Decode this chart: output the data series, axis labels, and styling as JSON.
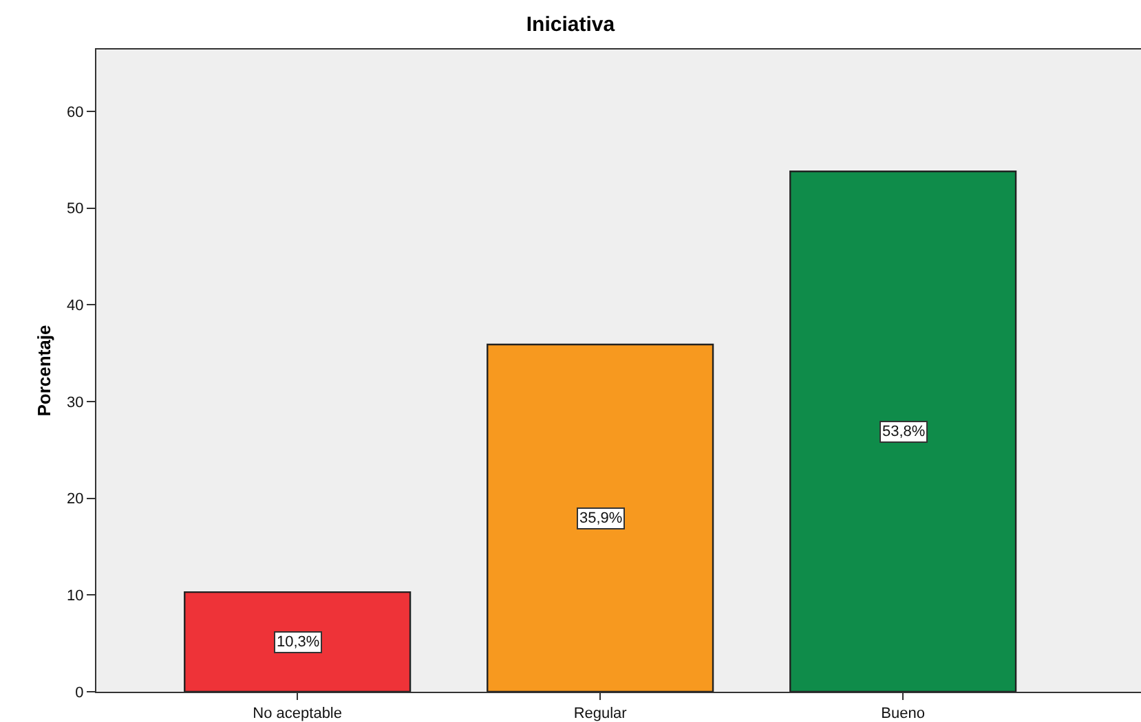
{
  "chart_data": {
    "type": "bar",
    "title": "Iniciativa",
    "ylabel": "Porcentaje",
    "categories": [
      "No aceptable",
      "Regular",
      "Bueno"
    ],
    "values": [
      10.3,
      35.9,
      53.8
    ],
    "colors": [
      "#ee3338",
      "#f7991f",
      "#0f8c4a"
    ],
    "value_labels": [
      "10,3%",
      "35,9%",
      "53,8%"
    ],
    "ylim": [
      0,
      66.4
    ],
    "yticks": [
      0,
      10,
      20,
      30,
      40,
      50,
      60
    ]
  }
}
